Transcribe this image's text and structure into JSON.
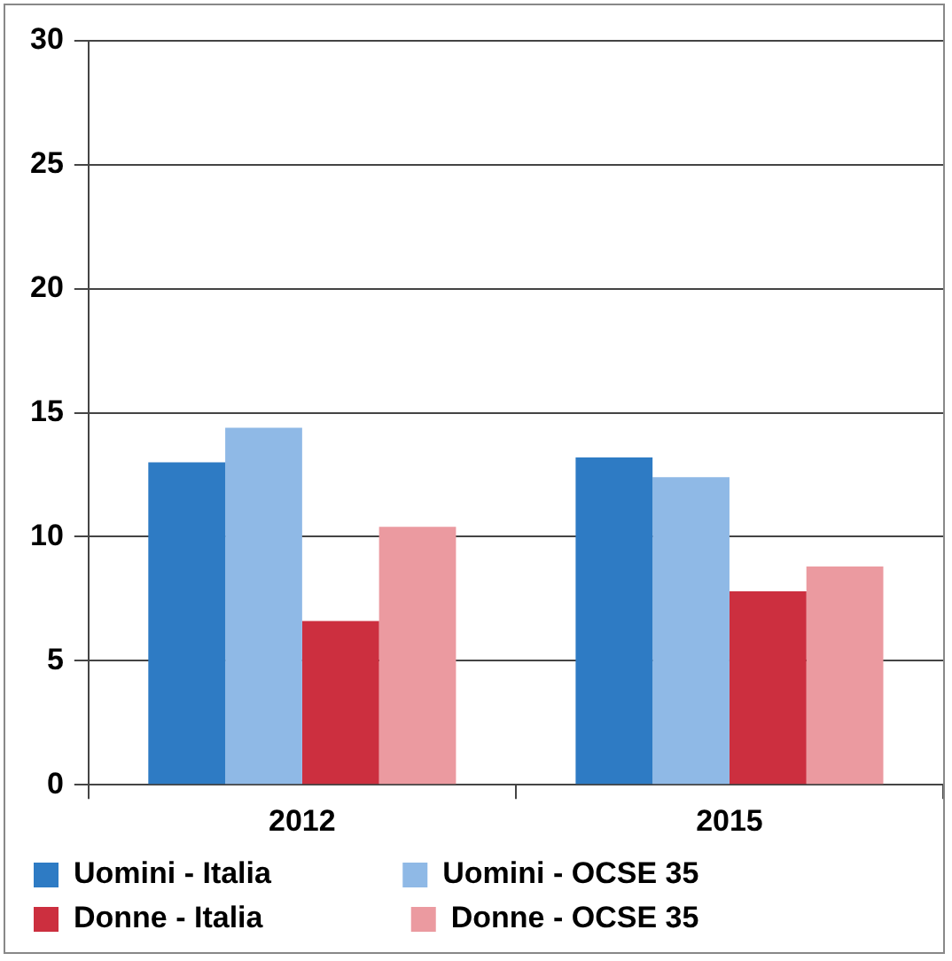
{
  "chart_data": {
    "type": "bar",
    "categories": [
      "2012",
      "2015"
    ],
    "series": [
      {
        "name": "Uomini - Italia",
        "color": "#2e7bc4",
        "values": [
          13.0,
          13.2
        ]
      },
      {
        "name": "Uomini - OCSE 35",
        "color": "#8fb9e6",
        "values": [
          14.4,
          12.4
        ]
      },
      {
        "name": "Donne - Italia",
        "color": "#cc2f3f",
        "values": [
          6.6,
          7.8
        ]
      },
      {
        "name": "Donne - OCSE 35",
        "color": "#eb9aa0",
        "values": [
          10.4,
          8.8
        ]
      }
    ],
    "ylim": [
      0,
      30
    ],
    "yticks": [
      0,
      5,
      10,
      15,
      20,
      25,
      30
    ],
    "grid": "y",
    "legend": "bottom"
  }
}
